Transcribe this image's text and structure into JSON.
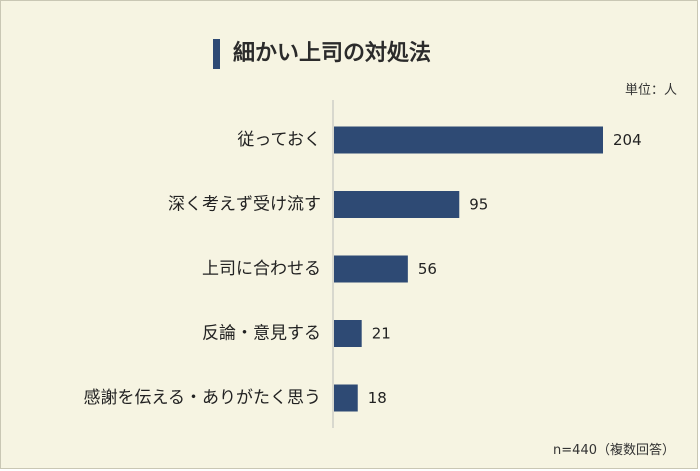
{
  "title": "細かい上司の対処法",
  "unit_label": "単位：人",
  "note": "n=440（複数回答）",
  "colors": {
    "bar": "#2e4a74",
    "background": "#f6f4e2",
    "title_bar": "#2e4a74",
    "axis": "#bbbbbb"
  },
  "chart_data": {
    "type": "bar",
    "orientation": "horizontal",
    "categories": [
      "従っておく",
      "深く考えず受け流す",
      "上司に合わせる",
      "反論・意見する",
      "感謝を伝える・ありがたく思う"
    ],
    "values": [
      204,
      95,
      56,
      21,
      18
    ],
    "xlim": [
      0,
      204
    ],
    "grid": false,
    "legend": "none"
  }
}
